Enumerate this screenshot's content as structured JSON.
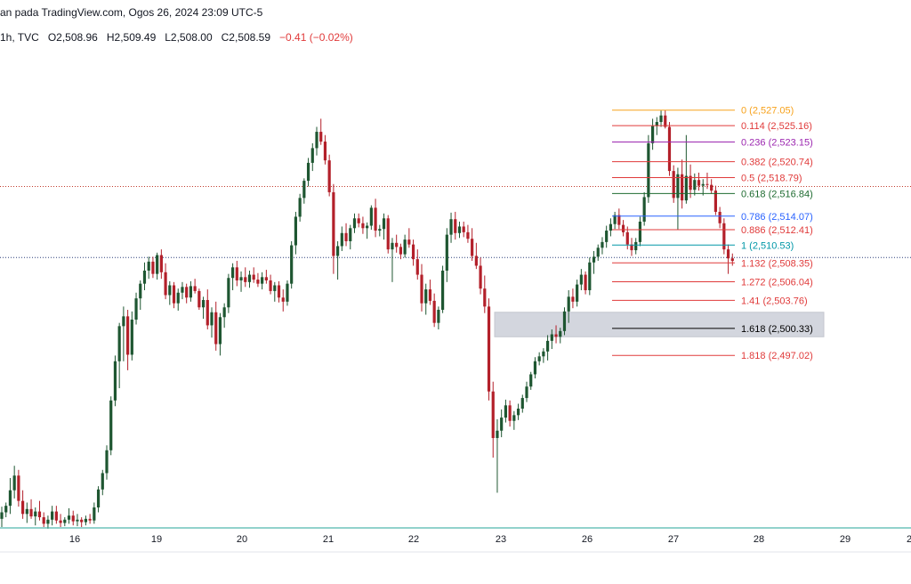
{
  "header": {
    "line1": "an pada TradingView.com, Ogos 26, 2024 23:09 UTC-5",
    "interval": "1h, TVC",
    "open": "O2,508.96",
    "high": "H2,509.49",
    "low": "L2,508.00",
    "close": "C2,508.59",
    "change": "−0.41 (−0.02%)"
  },
  "colors": {
    "up": "#1e5631",
    "down": "#b3202a",
    "axis_line": "#26a69a",
    "zone": "#d1d4dc"
  },
  "chart_data": {
    "type": "candlestick",
    "x_ticks": [
      "16",
      "19",
      "20",
      "21",
      "22",
      "23",
      "26",
      "27",
      "28",
      "29",
      "2"
    ],
    "y_range": [
      2476,
      2534
    ],
    "horizontal_lines": [
      {
        "label": "dotted-red",
        "value": 2517.7
      },
      {
        "label": "dotted-blue",
        "value": 2509.0
      }
    ],
    "fibonacci": [
      {
        "ratio": "0",
        "price": "2,527.05",
        "value": 2527.05,
        "color": "#f7a21b"
      },
      {
        "ratio": "0.114",
        "price": "2,525.16",
        "value": 2525.16,
        "color": "#e03a3a"
      },
      {
        "ratio": "0.236",
        "price": "2,523.15",
        "value": 2523.15,
        "color": "#9c27b0"
      },
      {
        "ratio": "0.382",
        "price": "2,520.74",
        "value": 2520.74,
        "color": "#e03a3a"
      },
      {
        "ratio": "0.5",
        "price": "2,518.79",
        "value": 2518.79,
        "color": "#e03a3a"
      },
      {
        "ratio": "0.618",
        "price": "2,516.84",
        "value": 2516.84,
        "color": "#1e6b30"
      },
      {
        "ratio": "0.786",
        "price": "2,514.07",
        "value": 2514.07,
        "color": "#2962ff"
      },
      {
        "ratio": "0.886",
        "price": "2,512.41",
        "value": 2512.41,
        "color": "#e03a3a"
      },
      {
        "ratio": "1",
        "price": "2,510.53",
        "value": 2510.53,
        "color": "#0097a7"
      },
      {
        "ratio": "1.132",
        "price": "2,508.35",
        "value": 2508.35,
        "color": "#e03a3a"
      },
      {
        "ratio": "1.272",
        "price": "2,506.04",
        "value": 2506.04,
        "color": "#e03a3a"
      },
      {
        "ratio": "1.41",
        "price": "2,503.76",
        "value": 2503.76,
        "color": "#e03a3a"
      },
      {
        "ratio": "1.618",
        "price": "2,500.33",
        "value": 2500.33,
        "color": "#000000"
      },
      {
        "ratio": "1.818",
        "price": "2,497.02",
        "value": 2497.02,
        "color": "#e03a3a"
      }
    ],
    "demand_zone": {
      "top": 2502.3,
      "bottom": 2499.3
    },
    "candles_ohlc": [
      [
        2477.0,
        2478.5,
        2476.0,
        2477.8
      ],
      [
        2477.8,
        2479.0,
        2477.2,
        2478.6
      ],
      [
        2478.6,
        2482.0,
        2477.6,
        2480.5
      ],
      [
        2480.5,
        2483.5,
        2479.5,
        2482.3
      ],
      [
        2482.3,
        2483.0,
        2478.5,
        2479.2
      ],
      [
        2479.2,
        2480.5,
        2477.0,
        2477.6
      ],
      [
        2477.6,
        2479.0,
        2476.5,
        2478.2
      ],
      [
        2478.2,
        2479.4,
        2477.0,
        2477.3
      ],
      [
        2477.3,
        2478.4,
        2476.2,
        2477.9
      ],
      [
        2477.9,
        2479.2,
        2476.8,
        2477.2
      ],
      [
        2477.2,
        2477.8,
        2476.0,
        2476.4
      ],
      [
        2476.4,
        2477.4,
        2475.8,
        2476.9
      ],
      [
        2476.9,
        2478.6,
        2476.2,
        2477.9
      ],
      [
        2477.9,
        2478.6,
        2476.4,
        2476.8
      ],
      [
        2476.8,
        2477.6,
        2476.0,
        2476.5
      ],
      [
        2476.5,
        2477.2,
        2476.1,
        2476.9
      ],
      [
        2476.9,
        2478.3,
        2476.4,
        2477.4
      ],
      [
        2477.4,
        2478.0,
        2476.2,
        2476.7
      ],
      [
        2476.7,
        2477.6,
        2476.1,
        2476.9
      ],
      [
        2476.9,
        2477.2,
        2476.0,
        2476.6
      ],
      [
        2476.6,
        2477.4,
        2476.2,
        2477.0
      ],
      [
        2477.0,
        2477.6,
        2476.4,
        2476.8
      ],
      [
        2476.8,
        2479.0,
        2476.4,
        2478.4
      ],
      [
        2478.4,
        2481.0,
        2477.8,
        2480.6
      ],
      [
        2480.6,
        2483.0,
        2479.9,
        2482.6
      ],
      [
        2482.6,
        2486.0,
        2481.8,
        2485.4
      ],
      [
        2485.4,
        2492.0,
        2484.8,
        2491.5
      ],
      [
        2491.5,
        2497.0,
        2490.8,
        2496.3
      ],
      [
        2496.3,
        2501.0,
        2493.0,
        2500.6
      ],
      [
        2500.6,
        2503.0,
        2496.3,
        2501.8
      ],
      [
        2501.8,
        2502.6,
        2495.2,
        2497.1
      ],
      [
        2497.1,
        2502.4,
        2496.4,
        2501.4
      ],
      [
        2501.4,
        2504.7,
        2500.8,
        2504.0
      ],
      [
        2504.0,
        2506.2,
        2502.6,
        2505.8
      ],
      [
        2505.8,
        2508.4,
        2505.0,
        2507.4
      ],
      [
        2507.4,
        2509.1,
        2506.4,
        2508.5
      ],
      [
        2508.5,
        2509.1,
        2506.5,
        2507.0
      ],
      [
        2507.0,
        2509.6,
        2506.3,
        2509.3
      ],
      [
        2509.3,
        2510.0,
        2506.4,
        2507.2
      ],
      [
        2507.2,
        2508.3,
        2503.9,
        2504.4
      ],
      [
        2504.4,
        2506.1,
        2503.2,
        2505.6
      ],
      [
        2505.6,
        2506.0,
        2502.8,
        2503.4
      ],
      [
        2503.4,
        2505.2,
        2502.5,
        2504.7
      ],
      [
        2504.7,
        2506.0,
        2503.9,
        2505.4
      ],
      [
        2505.4,
        2505.8,
        2503.4,
        2504.1
      ],
      [
        2504.1,
        2506.1,
        2503.6,
        2505.5
      ],
      [
        2505.5,
        2506.4,
        2504.6,
        2504.9
      ],
      [
        2504.9,
        2505.2,
        2502.6,
        2502.9
      ],
      [
        2502.9,
        2504.2,
        2501.5,
        2503.8
      ],
      [
        2503.8,
        2505.1,
        2500.2,
        2500.7
      ],
      [
        2500.7,
        2502.9,
        2499.2,
        2502.3
      ],
      [
        2502.3,
        2503.6,
        2497.6,
        2498.4
      ],
      [
        2498.4,
        2502.2,
        2497.0,
        2501.7
      ],
      [
        2501.7,
        2503.4,
        2500.4,
        2502.9
      ],
      [
        2502.9,
        2507.0,
        2502.2,
        2506.5
      ],
      [
        2506.5,
        2508.3,
        2505.0,
        2507.8
      ],
      [
        2507.8,
        2508.6,
        2505.5,
        2506.2
      ],
      [
        2506.2,
        2507.3,
        2504.8,
        2506.6
      ],
      [
        2506.6,
        2507.8,
        2505.4,
        2506.0
      ],
      [
        2506.0,
        2507.4,
        2505.3,
        2506.9
      ],
      [
        2506.9,
        2507.8,
        2505.9,
        2506.3
      ],
      [
        2506.3,
        2507.1,
        2505.4,
        2505.8
      ],
      [
        2505.8,
        2507.2,
        2505.1,
        2506.6
      ],
      [
        2506.6,
        2507.5,
        2505.8,
        2506.2
      ],
      [
        2506.2,
        2506.9,
        2504.5,
        2504.9
      ],
      [
        2504.9,
        2506.0,
        2503.6,
        2505.6
      ],
      [
        2505.6,
        2506.1,
        2503.5,
        2504.1
      ],
      [
        2504.1,
        2505.1,
        2502.4,
        2503.6
      ],
      [
        2503.6,
        2506.2,
        2503.1,
        2505.8
      ],
      [
        2505.8,
        2511.0,
        2505.2,
        2510.5
      ],
      [
        2510.5,
        2514.6,
        2509.4,
        2514.0
      ],
      [
        2514.0,
        2516.8,
        2513.4,
        2516.3
      ],
      [
        2516.3,
        2518.7,
        2515.6,
        2518.4
      ],
      [
        2518.4,
        2521.2,
        2517.7,
        2520.6
      ],
      [
        2520.6,
        2523.0,
        2519.6,
        2522.4
      ],
      [
        2522.4,
        2525.0,
        2521.5,
        2524.4
      ],
      [
        2524.4,
        2526.0,
        2522.8,
        2523.2
      ],
      [
        2523.2,
        2524.0,
        2520.4,
        2520.9
      ],
      [
        2520.9,
        2521.6,
        2516.5,
        2517.0
      ],
      [
        2517.0,
        2518.0,
        2507.0,
        2509.2
      ],
      [
        2509.2,
        2511.0,
        2506.3,
        2510.4
      ],
      [
        2510.4,
        2512.8,
        2509.8,
        2512.0
      ],
      [
        2512.0,
        2513.2,
        2510.4,
        2511.0
      ],
      [
        2511.0,
        2513.0,
        2510.0,
        2512.6
      ],
      [
        2512.6,
        2514.4,
        2512.0,
        2513.8
      ],
      [
        2513.8,
        2514.4,
        2512.7,
        2513.2
      ],
      [
        2513.2,
        2514.0,
        2511.9,
        2512.6
      ],
      [
        2512.6,
        2513.3,
        2511.3,
        2512.9
      ],
      [
        2512.9,
        2515.4,
        2512.4,
        2515.1
      ],
      [
        2515.1,
        2516.2,
        2511.5,
        2512.3
      ],
      [
        2512.3,
        2513.0,
        2511.6,
        2512.5
      ],
      [
        2512.5,
        2514.4,
        2511.2,
        2513.8
      ],
      [
        2513.8,
        2514.2,
        2509.5,
        2510.0
      ],
      [
        2510.0,
        2511.4,
        2506.0,
        2510.8
      ],
      [
        2510.8,
        2511.8,
        2509.6,
        2510.3
      ],
      [
        2510.3,
        2510.7,
        2508.8,
        2509.4
      ],
      [
        2509.4,
        2511.8,
        2509.0,
        2511.2
      ],
      [
        2511.2,
        2512.6,
        2510.2,
        2510.6
      ],
      [
        2510.6,
        2511.2,
        2508.0,
        2508.8
      ],
      [
        2508.8,
        2510.0,
        2506.3,
        2506.9
      ],
      [
        2506.9,
        2508.2,
        2502.4,
        2503.4
      ],
      [
        2503.4,
        2505.8,
        2502.0,
        2505.1
      ],
      [
        2505.1,
        2506.3,
        2503.2,
        2503.7
      ],
      [
        2503.7,
        2504.6,
        2500.5,
        2501.0
      ],
      [
        2501.0,
        2503.0,
        2500.2,
        2502.6
      ],
      [
        2502.6,
        2508.0,
        2502.2,
        2507.4
      ],
      [
        2507.4,
        2512.6,
        2506.0,
        2511.8
      ],
      [
        2511.8,
        2514.5,
        2510.8,
        2513.7
      ],
      [
        2513.7,
        2514.6,
        2511.2,
        2512.0
      ],
      [
        2512.0,
        2513.4,
        2511.4,
        2512.8
      ],
      [
        2512.8,
        2513.4,
        2511.5,
        2512.1
      ],
      [
        2512.1,
        2513.0,
        2510.8,
        2511.3
      ],
      [
        2511.3,
        2512.6,
        2508.6,
        2509.2
      ],
      [
        2509.2,
        2510.8,
        2507.6,
        2508.0
      ],
      [
        2508.0,
        2509.0,
        2504.5,
        2505.2
      ],
      [
        2505.2,
        2506.8,
        2502.2,
        2503.0
      ],
      [
        2503.0,
        2504.0,
        2491.5,
        2492.6
      ],
      [
        2492.6,
        2493.8,
        2484.5,
        2486.9
      ],
      [
        2486.9,
        2489.2,
        2480.2,
        2487.8
      ],
      [
        2487.8,
        2490.4,
        2487.0,
        2489.4
      ],
      [
        2489.4,
        2491.6,
        2488.8,
        2490.9
      ],
      [
        2490.9,
        2491.5,
        2488.3,
        2489.0
      ],
      [
        2489.0,
        2490.2,
        2487.9,
        2489.7
      ],
      [
        2489.7,
        2491.1,
        2489.1,
        2490.5
      ],
      [
        2490.5,
        2492.2,
        2490.0,
        2491.8
      ],
      [
        2491.8,
        2493.8,
        2491.3,
        2493.2
      ],
      [
        2493.2,
        2495.0,
        2492.8,
        2494.7
      ],
      [
        2494.7,
        2496.8,
        2494.2,
        2496.3
      ],
      [
        2496.3,
        2497.4,
        2495.8,
        2496.9
      ],
      [
        2496.9,
        2497.9,
        2496.1,
        2497.5
      ],
      [
        2497.5,
        2499.5,
        2496.4,
        2498.8
      ],
      [
        2498.8,
        2500.2,
        2497.8,
        2499.6
      ],
      [
        2499.6,
        2500.7,
        2498.5,
        2499.3
      ],
      [
        2499.3,
        2500.4,
        2498.5,
        2500.0
      ],
      [
        2500.0,
        2502.9,
        2499.5,
        2502.4
      ],
      [
        2502.4,
        2505.0,
        2501.0,
        2504.2
      ],
      [
        2504.2,
        2505.2,
        2502.8,
        2503.6
      ],
      [
        2503.6,
        2506.3,
        2503.0,
        2505.7
      ],
      [
        2505.7,
        2507.6,
        2505.0,
        2506.9
      ],
      [
        2506.9,
        2507.3,
        2504.5,
        2505.0
      ],
      [
        2505.0,
        2509.0,
        2504.4,
        2508.4
      ],
      [
        2508.4,
        2509.8,
        2507.0,
        2509.1
      ],
      [
        2509.1,
        2510.6,
        2508.6,
        2510.2
      ],
      [
        2510.2,
        2511.5,
        2509.4,
        2510.9
      ],
      [
        2510.9,
        2512.9,
        2510.2,
        2512.3
      ],
      [
        2512.3,
        2513.8,
        2511.6,
        2513.1
      ],
      [
        2513.1,
        2514.6,
        2512.5,
        2514.2
      ],
      [
        2514.2,
        2515.0,
        2512.5,
        2513.0
      ],
      [
        2513.0,
        2513.6,
        2511.6,
        2512.1
      ],
      [
        2512.1,
        2512.8,
        2510.0,
        2510.6
      ],
      [
        2510.6,
        2511.4,
        2509.2,
        2509.9
      ],
      [
        2509.9,
        2511.4,
        2509.4,
        2510.9
      ],
      [
        2510.9,
        2514.0,
        2510.4,
        2513.4
      ],
      [
        2513.4,
        2517.0,
        2512.9,
        2516.4
      ],
      [
        2516.4,
        2524.0,
        2515.7,
        2523.0
      ],
      [
        2523.0,
        2526.0,
        2522.2,
        2525.1
      ],
      [
        2525.1,
        2526.2,
        2524.0,
        2525.6
      ],
      [
        2525.6,
        2527.0,
        2525.0,
        2526.4
      ],
      [
        2526.4,
        2527.05,
        2524.8,
        2525.0
      ],
      [
        2525.0,
        2525.6,
        2519.0,
        2519.6
      ],
      [
        2519.6,
        2520.3,
        2515.7,
        2516.3
      ],
      [
        2516.3,
        2520.0,
        2512.4,
        2519.2
      ],
      [
        2519.2,
        2521.0,
        2515.0,
        2516.0
      ],
      [
        2516.0,
        2524.0,
        2515.6,
        2519.0
      ],
      [
        2519.0,
        2520.4,
        2516.3,
        2517.3
      ],
      [
        2517.3,
        2519.3,
        2516.6,
        2518.5
      ],
      [
        2518.5,
        2519.4,
        2517.2,
        2517.8
      ],
      [
        2517.8,
        2518.6,
        2516.6,
        2518.0
      ],
      [
        2518.0,
        2519.4,
        2517.4,
        2517.9
      ],
      [
        2517.9,
        2518.6,
        2516.8,
        2517.2
      ],
      [
        2517.2,
        2517.8,
        2514.2,
        2514.6
      ],
      [
        2514.6,
        2515.2,
        2512.6,
        2513.2
      ],
      [
        2513.2,
        2513.8,
        2509.4,
        2510.0
      ],
      [
        2510.0,
        2510.6,
        2507.0,
        2508.9
      ],
      [
        2508.9,
        2509.5,
        2508.0,
        2508.59
      ]
    ]
  }
}
